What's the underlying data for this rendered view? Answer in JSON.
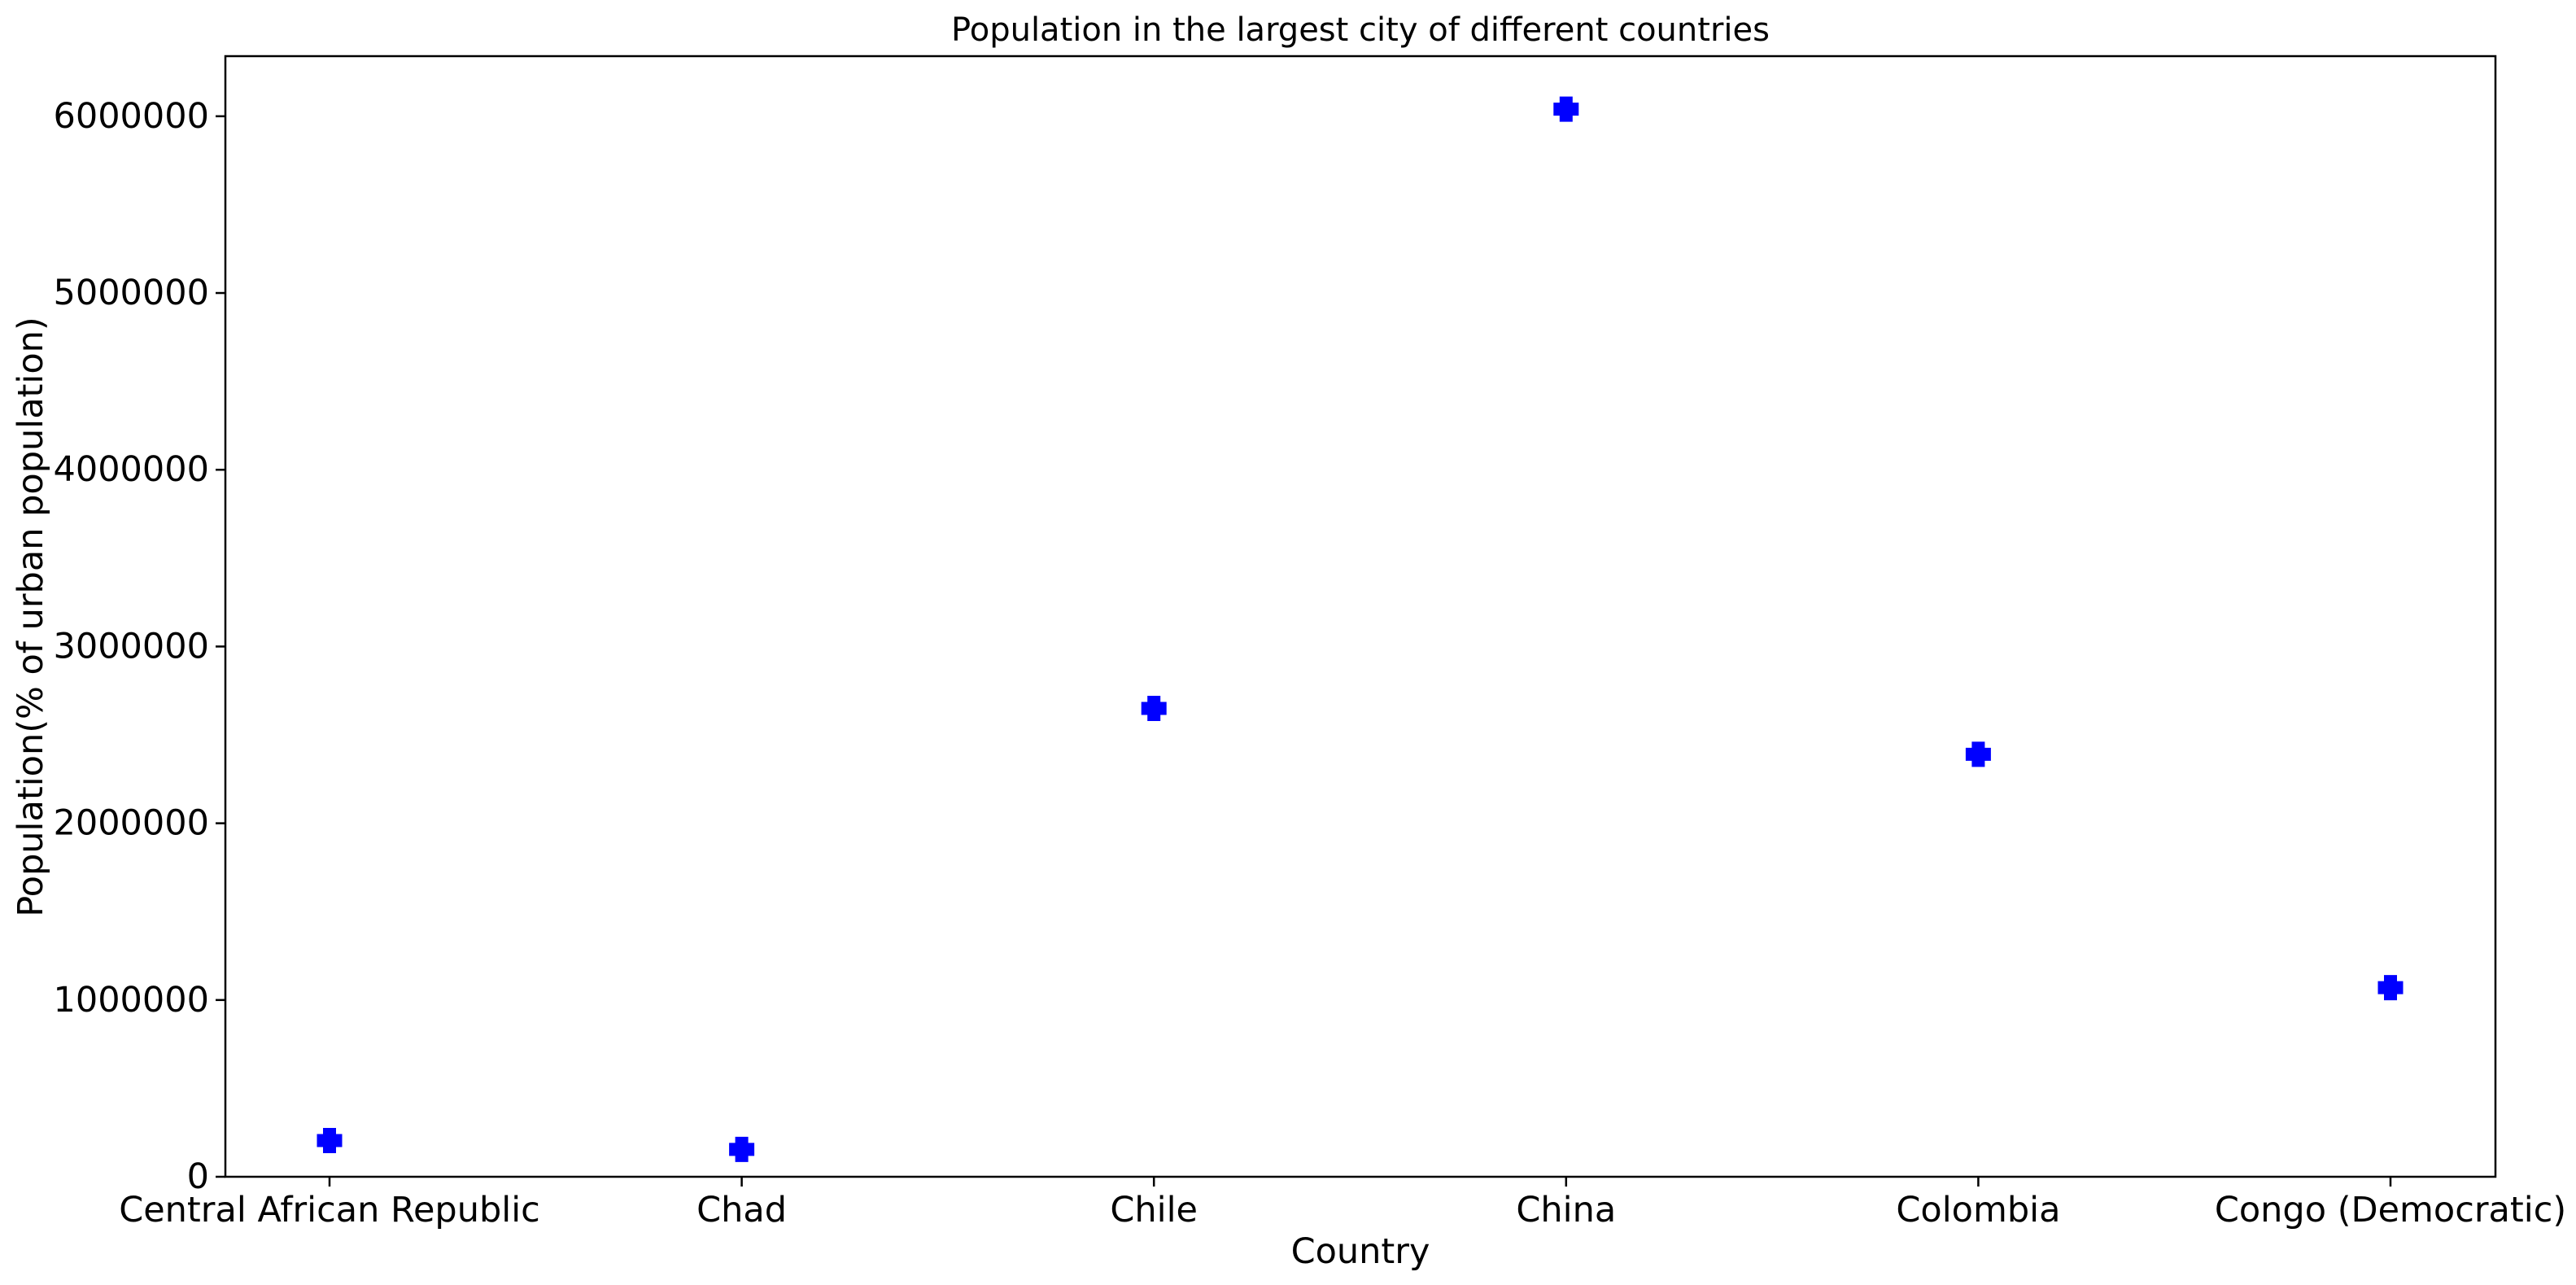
{
  "chart_data": {
    "type": "scatter",
    "title": "Population in the largest city of different countries",
    "xlabel": "Country",
    "ylabel": "Population(% of urban population)",
    "categories": [
      "Central African Republic",
      "Chad",
      "Chile",
      "China",
      "Colombia",
      "Congo (Democratic)"
    ],
    "series": [
      {
        "values": [
          205000,
          155000,
          2650000,
          6040000,
          2390000,
          1070000
        ]
      }
    ],
    "ylim": [
      0,
      6340000
    ],
    "yticks": [
      0,
      1000000,
      2000000,
      3000000,
      4000000,
      5000000,
      6000000
    ],
    "ytick_labels": [
      "0",
      "1000000",
      "2000000",
      "3000000",
      "4000000",
      "5000000",
      "6000000"
    ],
    "marker": "plus-filled",
    "marker_color": "#0000ff",
    "grid": false,
    "legend": "none"
  }
}
